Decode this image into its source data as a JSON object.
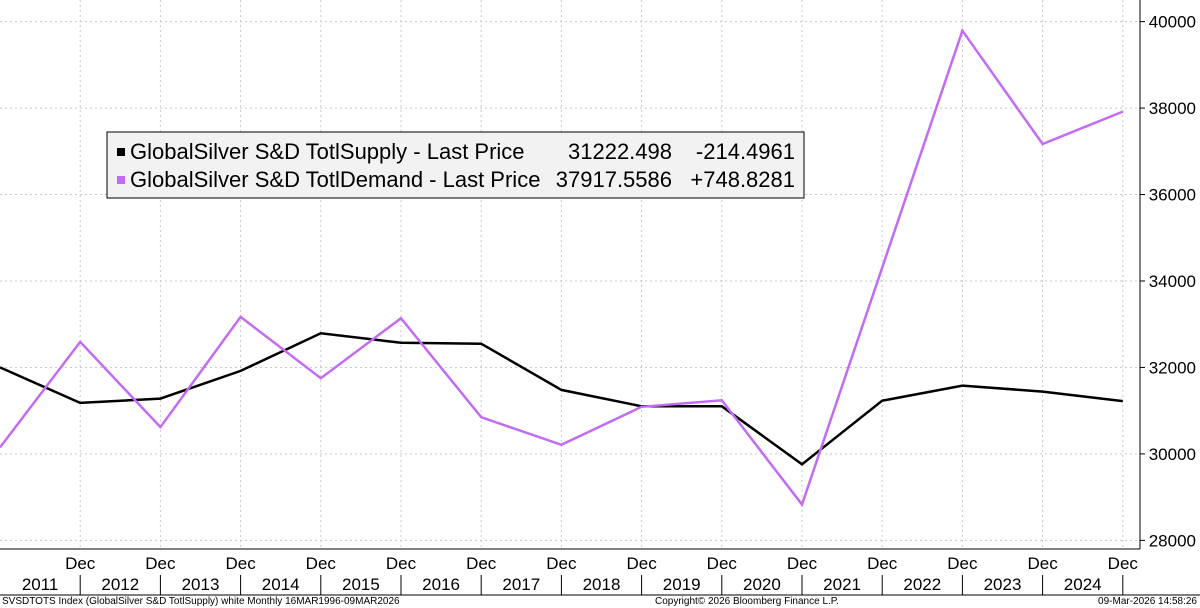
{
  "chart_data": {
    "type": "line",
    "x": [
      "2011",
      "Dec 2011",
      "Dec 2012",
      "Dec 2013",
      "Dec 2014",
      "Dec 2015",
      "Dec 2016",
      "Dec 2017",
      "Dec 2018",
      "Dec 2019",
      "Dec 2020",
      "Dec 2021",
      "Dec 2022",
      "Dec 2023",
      "Dec 2024"
    ],
    "series": [
      {
        "name": "GlobalSilver S&D TotlSupply - Last Price",
        "color": "#000000",
        "last_value": "31222.498",
        "change": "-214.4961",
        "values": [
          32000,
          31180,
          31280,
          31920,
          32790,
          32570,
          32550,
          31480,
          31100,
          31100,
          29760,
          31230,
          31580,
          31440,
          31222
        ]
      },
      {
        "name": "GlobalSilver S&D TotlDemand - Last Price",
        "color": "#c36cf2",
        "last_value": "37917.5586",
        "change": "+748.8281",
        "values": [
          30150,
          32590,
          30620,
          33170,
          31750,
          33140,
          30850,
          30210,
          31090,
          31240,
          28830,
          34310,
          39790,
          37170,
          37918
        ]
      }
    ],
    "ylim": [
      27800,
      40500
    ],
    "yticks": [
      28000,
      30000,
      32000,
      34000,
      36000,
      38000,
      40000
    ],
    "xtick_labels": [
      "Dec",
      "Dec",
      "Dec",
      "Dec",
      "Dec",
      "Dec",
      "Dec",
      "Dec",
      "Dec",
      "Dec",
      "Dec",
      "Dec",
      "Dec",
      "Dec"
    ],
    "year_labels": [
      "2011",
      "2012",
      "2013",
      "2014",
      "2015",
      "2016",
      "2017",
      "2018",
      "2019",
      "2020",
      "2021",
      "2022",
      "2023",
      "2024"
    ],
    "legend_position": "top-left",
    "grid": true,
    "footer": {
      "left": "SVSDTOTS Index (GlobalSilver S&D TotlSupply) white Monthly 16MAR1996-09MAR2026",
      "center": "Copyright© 2026 Bloomberg Finance L.P.",
      "right": "09-Mar-2026 14:58:26"
    }
  }
}
